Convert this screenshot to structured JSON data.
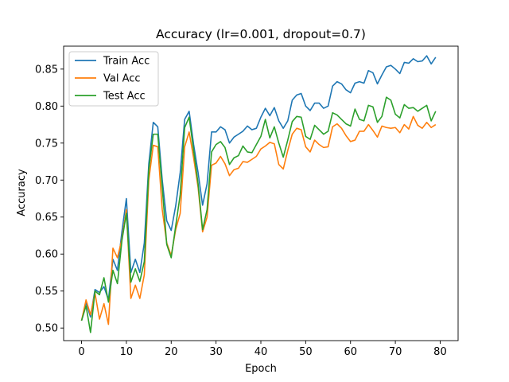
{
  "chart_data": {
    "type": "line",
    "title": "Accuracy (lr=0.001, dropout=0.7)",
    "xlabel": "Epoch",
    "ylabel": "Accuracy",
    "xlim": [
      -4,
      84
    ],
    "ylim": [
      0.483,
      0.881
    ],
    "xticks": [
      0,
      10,
      20,
      30,
      40,
      50,
      60,
      70,
      80
    ],
    "yticks": [
      0.5,
      0.55,
      0.6,
      0.65,
      0.7,
      0.75,
      0.8,
      0.85
    ],
    "grid": false,
    "legend_position": "top-left",
    "x": [
      0,
      1,
      2,
      3,
      4,
      5,
      6,
      7,
      8,
      9,
      10,
      11,
      12,
      13,
      14,
      15,
      16,
      17,
      18,
      19,
      20,
      21,
      22,
      23,
      24,
      25,
      26,
      27,
      28,
      29,
      30,
      31,
      32,
      33,
      34,
      35,
      36,
      37,
      38,
      39,
      40,
      41,
      42,
      43,
      44,
      45,
      46,
      47,
      48,
      49,
      50,
      51,
      52,
      53,
      54,
      55,
      56,
      57,
      58,
      59,
      60,
      61,
      62,
      63,
      64,
      65,
      66,
      67,
      68,
      69,
      70,
      71,
      72,
      73,
      74,
      75,
      76,
      77,
      78,
      79
    ],
    "series": [
      {
        "name": "Train Acc",
        "color": "#1f77b4",
        "values": [
          0.51,
          0.535,
          0.515,
          0.552,
          0.548,
          0.556,
          0.538,
          0.593,
          0.578,
          0.63,
          0.675,
          0.575,
          0.593,
          0.575,
          0.615,
          0.722,
          0.778,
          0.772,
          0.7,
          0.645,
          0.632,
          0.665,
          0.71,
          0.782,
          0.793,
          0.748,
          0.71,
          0.666,
          0.695,
          0.765,
          0.765,
          0.772,
          0.768,
          0.75,
          0.758,
          0.762,
          0.766,
          0.773,
          0.768,
          0.77,
          0.785,
          0.797,
          0.787,
          0.798,
          0.78,
          0.77,
          0.78,
          0.808,
          0.815,
          0.817,
          0.8,
          0.794,
          0.804,
          0.804,
          0.797,
          0.8,
          0.827,
          0.833,
          0.83,
          0.822,
          0.818,
          0.831,
          0.833,
          0.831,
          0.848,
          0.845,
          0.83,
          0.842,
          0.853,
          0.855,
          0.85,
          0.844,
          0.859,
          0.858,
          0.864,
          0.86,
          0.861,
          0.868,
          0.857,
          0.866
        ]
      },
      {
        "name": "Val Acc",
        "color": "#ff7f0e",
        "values": [
          0.51,
          0.538,
          0.518,
          0.547,
          0.512,
          0.533,
          0.505,
          0.608,
          0.595,
          0.62,
          0.66,
          0.54,
          0.558,
          0.54,
          0.572,
          0.7,
          0.747,
          0.745,
          0.66,
          0.615,
          0.598,
          0.633,
          0.655,
          0.745,
          0.765,
          0.73,
          0.69,
          0.63,
          0.65,
          0.72,
          0.723,
          0.732,
          0.722,
          0.706,
          0.714,
          0.716,
          0.725,
          0.724,
          0.728,
          0.732,
          0.742,
          0.746,
          0.751,
          0.749,
          0.721,
          0.715,
          0.74,
          0.762,
          0.77,
          0.768,
          0.745,
          0.738,
          0.754,
          0.748,
          0.744,
          0.745,
          0.772,
          0.776,
          0.77,
          0.76,
          0.752,
          0.754,
          0.766,
          0.766,
          0.775,
          0.767,
          0.758,
          0.773,
          0.771,
          0.77,
          0.771,
          0.764,
          0.775,
          0.769,
          0.786,
          0.774,
          0.77,
          0.778,
          0.771,
          0.775
        ]
      },
      {
        "name": "Test Acc",
        "color": "#2ca02c",
        "values": [
          0.51,
          0.53,
          0.494,
          0.55,
          0.545,
          0.568,
          0.535,
          0.578,
          0.56,
          0.618,
          0.655,
          0.562,
          0.58,
          0.563,
          0.59,
          0.714,
          0.762,
          0.762,
          0.69,
          0.613,
          0.595,
          0.638,
          0.68,
          0.771,
          0.785,
          0.74,
          0.695,
          0.633,
          0.66,
          0.738,
          0.748,
          0.752,
          0.744,
          0.721,
          0.73,
          0.733,
          0.746,
          0.738,
          0.737,
          0.748,
          0.759,
          0.782,
          0.757,
          0.772,
          0.75,
          0.731,
          0.754,
          0.779,
          0.786,
          0.785,
          0.759,
          0.755,
          0.774,
          0.768,
          0.762,
          0.766,
          0.791,
          0.788,
          0.782,
          0.776,
          0.773,
          0.796,
          0.782,
          0.78,
          0.801,
          0.799,
          0.778,
          0.786,
          0.812,
          0.808,
          0.789,
          0.784,
          0.802,
          0.797,
          0.798,
          0.793,
          0.797,
          0.801,
          0.78,
          0.793
        ]
      }
    ]
  }
}
